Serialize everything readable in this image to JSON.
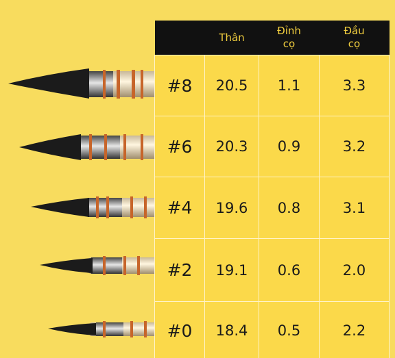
{
  "table": {
    "header": [
      "",
      "Thân",
      "Đỉnh\ncọ",
      "Đầu\ncọ"
    ],
    "rows": [
      [
        "#8",
        "20.5",
        "1.1",
        "3.3"
      ],
      [
        "#6",
        "20.3",
        "0.9",
        "3.2"
      ],
      [
        "#4",
        "19.6",
        "0.8",
        "3.1"
      ],
      [
        "#2",
        "19.1",
        "0.6",
        "2.0"
      ],
      [
        "#0",
        "18.4",
        "0.5",
        "2.2"
      ]
    ]
  }
}
